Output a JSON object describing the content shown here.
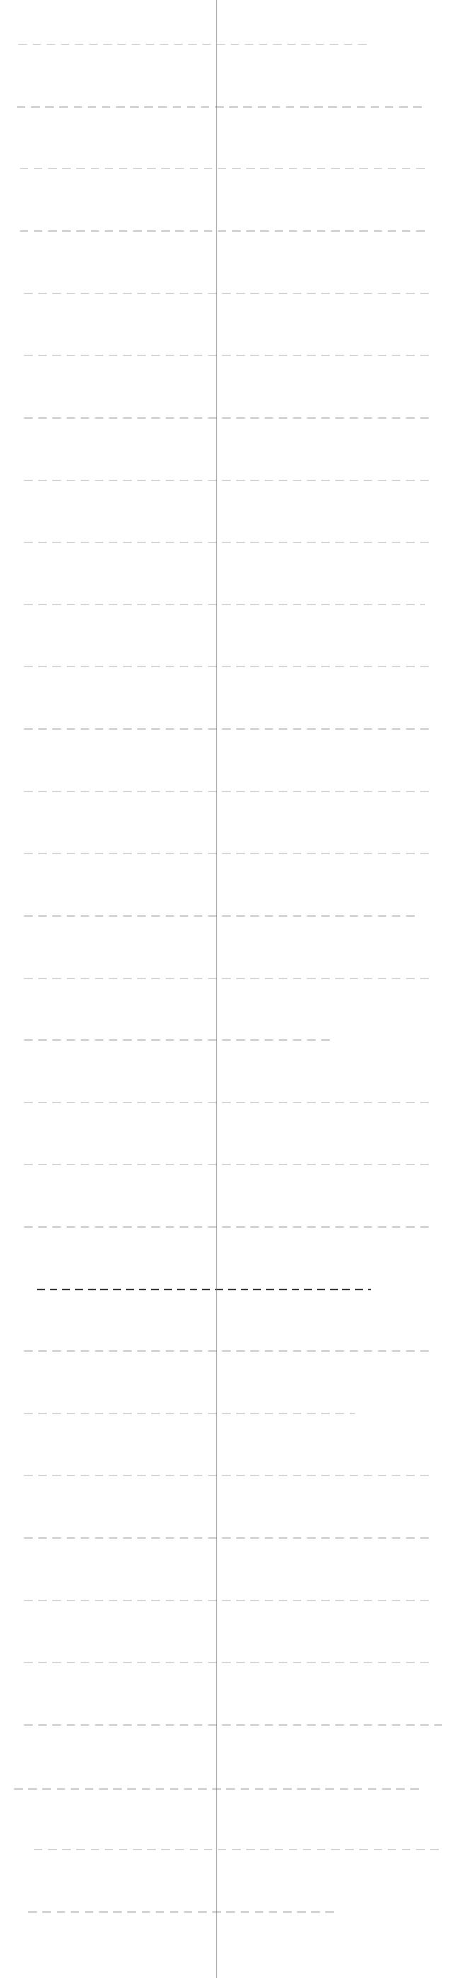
{
  "page": {
    "background": "#ffffff"
  },
  "divider": {
    "color": "#777777"
  },
  "rows": [
    {
      "color": "#c4c4c4",
      "style": "dashed"
    },
    {
      "color": "#c4c4c4",
      "style": "dashed"
    },
    {
      "color": "#c4c4c4",
      "style": "dashed"
    },
    {
      "color": "#c4c4c4",
      "style": "dashed"
    },
    {
      "color": "#c4c4c4",
      "style": "dashed"
    },
    {
      "color": "#c4c4c4",
      "style": "dashed"
    },
    {
      "color": "#c4c4c4",
      "style": "dashed"
    },
    {
      "color": "#c4c4c4",
      "style": "dashed"
    },
    {
      "color": "#c4c4c4",
      "style": "dashed"
    },
    {
      "color": "#c4c4c4",
      "style": "dashed"
    },
    {
      "color": "#c4c4c4",
      "style": "dashed"
    },
    {
      "color": "#c4c4c4",
      "style": "dashed"
    },
    {
      "color": "#c4c4c4",
      "style": "dashed"
    },
    {
      "color": "#c4c4c4",
      "style": "dashed"
    },
    {
      "color": "#c4c4c4",
      "style": "dashed"
    },
    {
      "color": "#c4c4c4",
      "style": "dashed"
    },
    {
      "color": "#c4c4c4",
      "style": "dashed"
    },
    {
      "color": "#c4c4c4",
      "style": "dashed"
    },
    {
      "color": "#c4c4c4",
      "style": "dashed"
    },
    {
      "color": "#c4c4c4",
      "style": "dashed"
    },
    {
      "color": "#222222",
      "style": "dashed-bold"
    },
    {
      "color": "#c4c4c4",
      "style": "dashed"
    },
    {
      "color": "#c4c4c4",
      "style": "dashed"
    },
    {
      "color": "#c4c4c4",
      "style": "dashed"
    },
    {
      "color": "#c4c4c4",
      "style": "dashed"
    },
    {
      "color": "#c4c4c4",
      "style": "dashed"
    },
    {
      "color": "#c4c4c4",
      "style": "dashed"
    },
    {
      "color": "#c4c4c4",
      "style": "dashed"
    },
    {
      "color": "#c4c4c4",
      "style": "dashed"
    },
    {
      "color": "#c4c4c4",
      "style": "dashed"
    },
    {
      "color": "#c4c4c4",
      "style": "dashed"
    }
  ]
}
